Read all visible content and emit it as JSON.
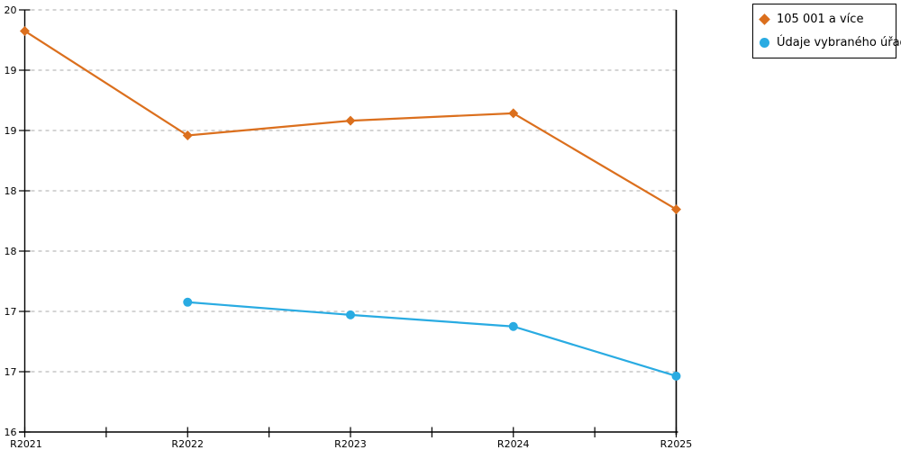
{
  "chart_data": {
    "type": "line",
    "title": "",
    "categories": [
      "R2021",
      "R2022",
      "R2023",
      "R2024",
      "R2025"
    ],
    "series": [
      {
        "name": "105 001 a více",
        "color": "#DB6F1D",
        "marker": "diamond",
        "values": [
          19.8,
          18.81,
          18.95,
          19.02,
          18.11
        ]
      },
      {
        "name": "Údaje vybraného úřadu",
        "color": "#29ABE2",
        "marker": "circle",
        "values": [
          null,
          17.23,
          17.11,
          17.0,
          16.53
        ]
      }
    ],
    "x_axis": {
      "tick_labels": [
        "R2021",
        "R2022",
        "R2023",
        "R2024",
        "R2025"
      ]
    },
    "y_axis": {
      "min": 16,
      "max": 20,
      "tick_labels": [
        "20",
        "19",
        "19",
        "18",
        "18",
        "17",
        "17",
        "16"
      ]
    },
    "grid": "dashed-horizontal",
    "legend_position": "top-right",
    "colors": {
      "axis": "#000000",
      "grid": "#BBBBBB",
      "background": "#FFFFFF"
    }
  }
}
